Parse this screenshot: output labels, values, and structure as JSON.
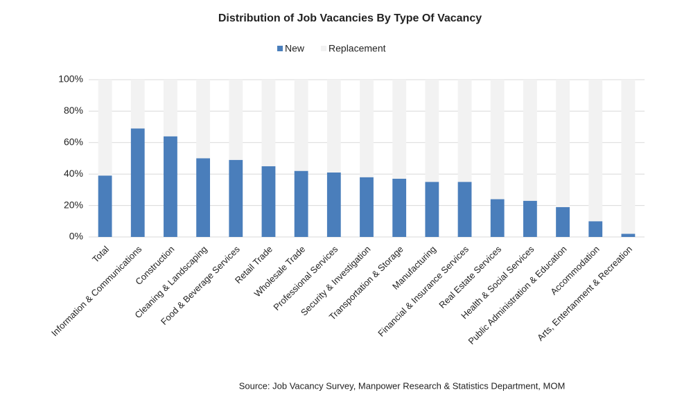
{
  "chart_data": {
    "type": "stacked_bar",
    "title": "Distribution of Job Vacancies By Type Of Vacancy",
    "source": "Source: Job Vacancy Survey, Manpower Research & Statistics Department, MOM",
    "categories": [
      "Total",
      "Information & Communications",
      "Construction",
      "Cleaning & Landscaping",
      "Food & Beverage Services",
      "Retail Trade",
      "Wholesale Trade",
      "Professional Services",
      "Security & Investigation",
      "Transportation & Storage",
      "Manufacturing",
      "Financial & Insurance Services",
      "Real Estate Services",
      "Health & Social Services",
      "Public Administration & Education",
      "Accommodation",
      "Arts, Entertanment & Recreation"
    ],
    "series": [
      {
        "name": "New",
        "color": "#4a7ebb",
        "values": [
          39,
          69,
          64,
          50,
          49,
          45,
          42,
          41,
          38,
          37,
          35,
          35,
          24,
          23,
          19,
          10,
          2
        ]
      },
      {
        "name": "Replacement",
        "color": "#f2f2f2",
        "values": [
          61,
          31,
          36,
          50,
          51,
          55,
          58,
          59,
          62,
          63,
          65,
          65,
          76,
          77,
          81,
          90,
          98
        ]
      }
    ],
    "ylim": [
      0,
      100
    ],
    "yticks": [
      {
        "value": 0,
        "label": "0%"
      },
      {
        "value": 20,
        "label": "20%"
      },
      {
        "value": 40,
        "label": "40%"
      },
      {
        "value": 60,
        "label": "60%"
      },
      {
        "value": 80,
        "label": "80%"
      },
      {
        "value": 100,
        "label": "100%"
      }
    ],
    "grid": true,
    "legend": "top"
  }
}
